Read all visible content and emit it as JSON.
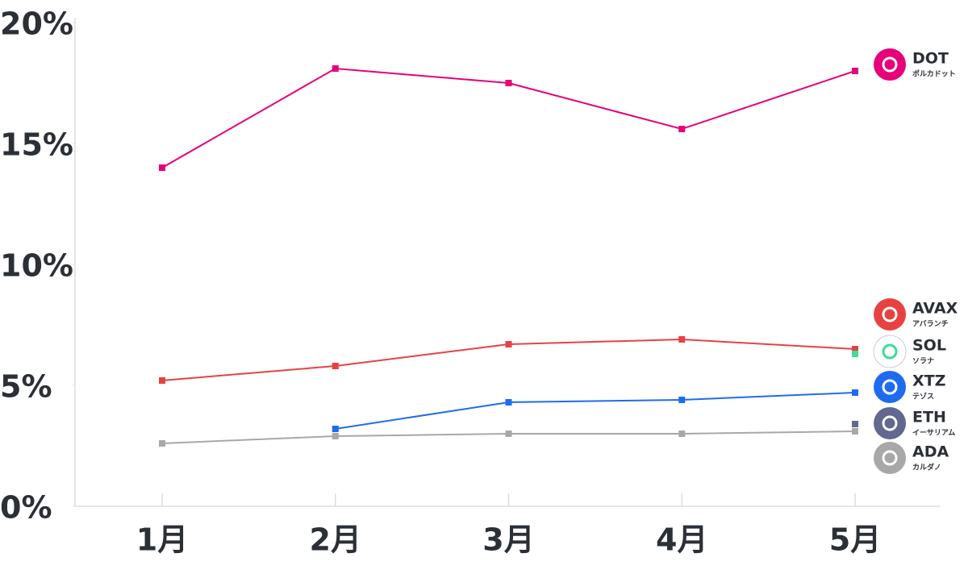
{
  "chart_data": {
    "type": "line",
    "categories": [
      "1月",
      "2月",
      "3月",
      "4月",
      "5月"
    ],
    "ylim": [
      0,
      20
    ],
    "yticks": [
      {
        "value": 0,
        "label": "0%"
      },
      {
        "value": 5,
        "label": "5%"
      },
      {
        "value": 10,
        "label": "10%"
      },
      {
        "value": 15,
        "label": "15%"
      },
      {
        "value": 20,
        "label": "20%"
      }
    ],
    "series": [
      {
        "name": "DOT",
        "subtitle": "ポルカドット",
        "color": "#e6007a",
        "values": [
          14.0,
          18.1,
          17.5,
          15.6,
          18.0
        ]
      },
      {
        "name": "AVAX",
        "subtitle": "アバランチ",
        "color": "#e84142",
        "values": [
          5.2,
          5.8,
          6.7,
          6.9,
          6.5
        ]
      },
      {
        "name": "SOL",
        "subtitle": "ソラナ",
        "color": "#3ddc97",
        "values": [
          null,
          null,
          null,
          null,
          6.3
        ]
      },
      {
        "name": "XTZ",
        "subtitle": "テゾス",
        "color": "#1f6bf0",
        "values": [
          null,
          3.2,
          4.3,
          4.4,
          4.7
        ]
      },
      {
        "name": "ETH",
        "subtitle": "イーサリアム",
        "color": "#62688f",
        "values": [
          null,
          null,
          null,
          null,
          3.4
        ]
      },
      {
        "name": "ADA",
        "subtitle": "カルダノ",
        "color": "#a8a8a8",
        "values": [
          2.6,
          2.9,
          3.0,
          3.0,
          3.1
        ]
      }
    ]
  }
}
